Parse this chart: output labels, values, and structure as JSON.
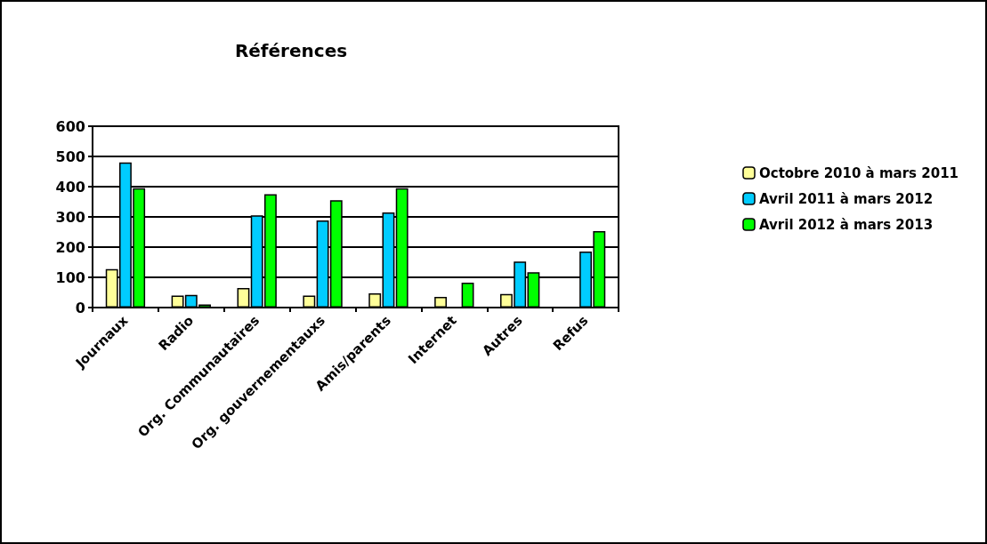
{
  "chart_data": {
    "type": "bar",
    "title": "Références",
    "categories": [
      "Journaux",
      "Radio",
      "Org. Communautaires",
      "Org. gouvernementauxs",
      "Amis/parents",
      "Internet",
      "Autres",
      "Refus"
    ],
    "series": [
      {
        "name": "Octobre 2010 à mars 2011",
        "color": "#ffff99",
        "values": [
          127,
          40,
          65,
          40,
          47,
          35,
          45,
          null
        ]
      },
      {
        "name": "Avril 2011 à mars 2012",
        "color": "#00ccff",
        "values": [
          480,
          42,
          305,
          288,
          315,
          null,
          152,
          185
        ]
      },
      {
        "name": "Avril 2012 à mars 2013",
        "color": "#00ff00",
        "values": [
          395,
          10,
          375,
          355,
          395,
          82,
          117,
          253
        ]
      }
    ],
    "ylim": [
      0,
      600
    ],
    "yticks": [
      0,
      100,
      200,
      300,
      400,
      500,
      600
    ],
    "grid": "y",
    "legend": "right"
  }
}
